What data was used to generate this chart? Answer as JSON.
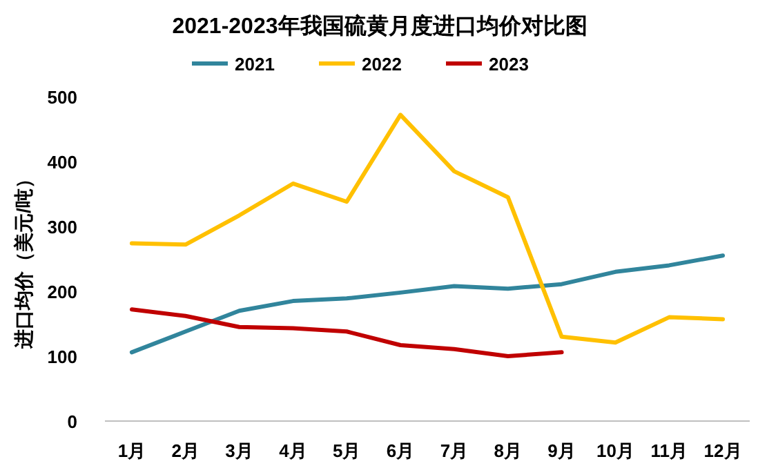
{
  "chart_data": {
    "type": "line",
    "title": "2021-2023年我国硫黄月度进口均价对比图",
    "ylabel": "进口均价（美元/吨）",
    "categories": [
      "1月",
      "2月",
      "3月",
      "4月",
      "5月",
      "6月",
      "7月",
      "8月",
      "9月",
      "10月",
      "11月",
      "12月"
    ],
    "series": [
      {
        "name": "2021",
        "color": "#31859c",
        "values": [
          106,
          138,
          170,
          185,
          189,
          198,
          208,
          204,
          211,
          230,
          240,
          255
        ]
      },
      {
        "name": "2022",
        "color": "#ffc000",
        "values": [
          274,
          272,
          317,
          366,
          338,
          472,
          385,
          345,
          130,
          121,
          160,
          157
        ]
      },
      {
        "name": "2023",
        "color": "#c00000",
        "values": [
          172,
          162,
          145,
          143,
          138,
          117,
          111,
          100,
          106,
          null,
          null,
          null
        ]
      }
    ],
    "ylim": [
      0,
      500
    ],
    "yticks": [
      0,
      100,
      200,
      300,
      400,
      500
    ],
    "legend": "top"
  }
}
